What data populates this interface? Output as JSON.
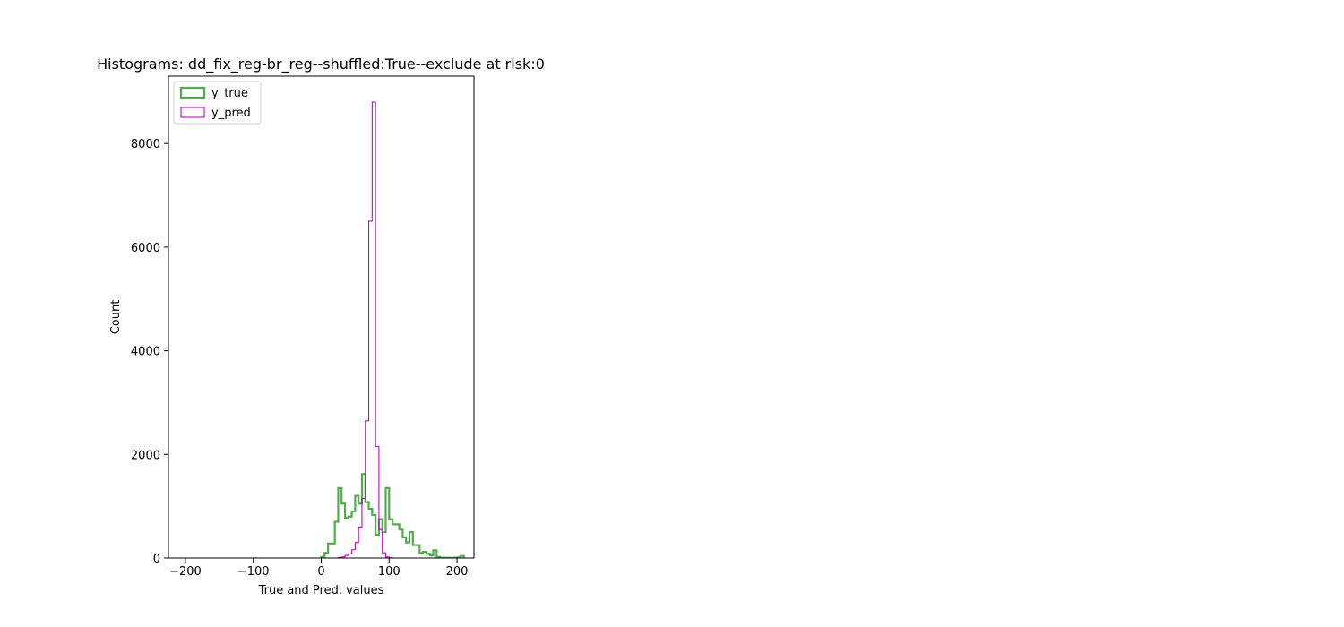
{
  "chart_data": {
    "type": "histogram",
    "title": "Histograms: dd_fix_reg-br_reg--shuffled:True--exclude at risk:0",
    "xlabel": "True and Pred. values",
    "ylabel": "Count",
    "xlim": [
      -225,
      225
    ],
    "ylim": [
      0,
      9300
    ],
    "xticks": [
      -200,
      -100,
      0,
      100,
      200
    ],
    "xtick_labels": [
      "−200",
      "−100",
      "0",
      "100",
      "200"
    ],
    "yticks": [
      0,
      2000,
      4000,
      6000,
      8000
    ],
    "ytick_labels": [
      "0",
      "2000",
      "4000",
      "6000",
      "8000"
    ],
    "grid": false,
    "legend": {
      "placement": "upper left",
      "entries": [
        "y_true",
        "y_pred"
      ]
    },
    "series": [
      {
        "name": "y_true",
        "color": "#4daf4a",
        "style": "step-outline-thick",
        "bin_width": 5,
        "bins": [
          [
            0,
            5,
            20
          ],
          [
            5,
            10,
            100
          ],
          [
            10,
            15,
            280
          ],
          [
            15,
            20,
            280
          ],
          [
            20,
            25,
            700
          ],
          [
            25,
            30,
            1350
          ],
          [
            30,
            35,
            1050
          ],
          [
            35,
            40,
            780
          ],
          [
            40,
            45,
            800
          ],
          [
            45,
            50,
            900
          ],
          [
            50,
            55,
            1200
          ],
          [
            55,
            60,
            1050
          ],
          [
            60,
            65,
            1620
          ],
          [
            65,
            70,
            1080
          ],
          [
            70,
            75,
            950
          ],
          [
            75,
            80,
            830
          ],
          [
            80,
            85,
            450
          ],
          [
            85,
            90,
            750
          ],
          [
            90,
            95,
            500
          ],
          [
            95,
            100,
            1350
          ],
          [
            100,
            105,
            750
          ],
          [
            105,
            110,
            650
          ],
          [
            110,
            115,
            650
          ],
          [
            115,
            120,
            550
          ],
          [
            120,
            125,
            400
          ],
          [
            125,
            130,
            300
          ],
          [
            130,
            135,
            500
          ],
          [
            135,
            140,
            250
          ],
          [
            140,
            145,
            250
          ],
          [
            145,
            150,
            100
          ],
          [
            150,
            155,
            120
          ],
          [
            155,
            160,
            80
          ],
          [
            160,
            165,
            50
          ],
          [
            165,
            170,
            150
          ],
          [
            170,
            175,
            20
          ],
          [
            175,
            180,
            5
          ],
          [
            180,
            185,
            5
          ],
          [
            185,
            190,
            5
          ],
          [
            190,
            195,
            5
          ],
          [
            195,
            200,
            5
          ],
          [
            200,
            205,
            10
          ],
          [
            205,
            210,
            40
          ]
        ]
      },
      {
        "name": "y_pred",
        "color": "#cc00cc",
        "style": "step-outline-thin",
        "bin_width": 5,
        "bins": [
          [
            25,
            30,
            10
          ],
          [
            30,
            35,
            20
          ],
          [
            35,
            40,
            50
          ],
          [
            40,
            45,
            80
          ],
          [
            45,
            50,
            160
          ],
          [
            50,
            55,
            300
          ],
          [
            55,
            60,
            600
          ],
          [
            60,
            65,
            1150
          ],
          [
            65,
            70,
            2650
          ],
          [
            70,
            75,
            6500
          ],
          [
            75,
            80,
            8800
          ],
          [
            80,
            85,
            2150
          ],
          [
            85,
            90,
            550
          ],
          [
            90,
            95,
            100
          ],
          [
            95,
            100,
            20
          ],
          [
            100,
            105,
            5
          ]
        ]
      }
    ]
  }
}
